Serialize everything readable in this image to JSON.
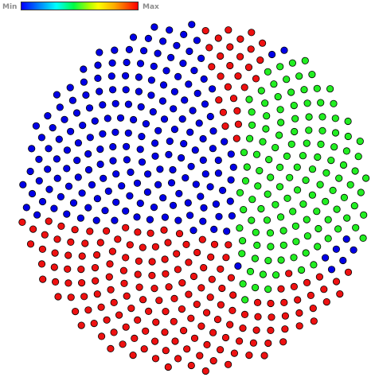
{
  "legend": {
    "min_label": "Min",
    "max_label": "Max"
  },
  "palette": {
    "low": "#0000e6",
    "mid": "#22ee22",
    "high": "#ee1111",
    "outline": "#000000"
  },
  "chart_data": {
    "type": "scatter",
    "layout": "spiral-disk",
    "point_count": 520,
    "colors": [
      "blue",
      "green",
      "red"
    ],
    "regions": [
      {
        "color": "blue",
        "value": "min"
      },
      {
        "color": "green",
        "value": "mid"
      },
      {
        "color": "red",
        "value": "max"
      }
    ]
  }
}
